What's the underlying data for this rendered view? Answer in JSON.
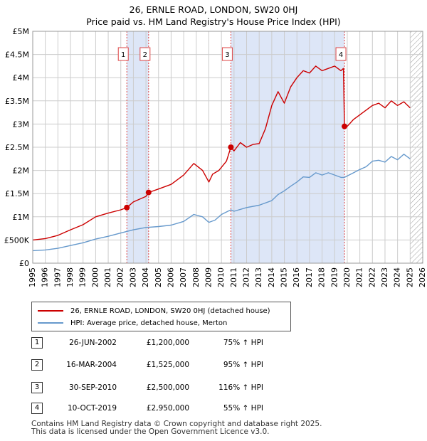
{
  "title_line1": "26, ERNLE ROAD, LONDON, SW20 0HJ",
  "title_line2": "Price paid vs. HM Land Registry's House Price Index (HPI)",
  "colors": {
    "property": "#cc0000",
    "hpi": "#6699cc",
    "shade": "#dde6f7",
    "grid": "#cccccc",
    "vline": "#dd4444"
  },
  "chart_data": {
    "type": "line",
    "title": "Price paid vs. HM Land Registry's House Price Index (HPI)",
    "xlim": [
      1995,
      2026
    ],
    "ylim": [
      0,
      5000000
    ],
    "x_ticks": [
      1995,
      1996,
      1997,
      1998,
      1999,
      2000,
      2001,
      2002,
      2003,
      2004,
      2005,
      2006,
      2007,
      2008,
      2009,
      2010,
      2011,
      2012,
      2013,
      2014,
      2015,
      2016,
      2017,
      2018,
      2019,
      2020,
      2021,
      2022,
      2023,
      2024,
      2025,
      2026
    ],
    "x_tick_labels": [
      "1995",
      "1996",
      "1997",
      "1998",
      "1999",
      "2000",
      "2001",
      "2002",
      "2003",
      "2004",
      "2005",
      "2006",
      "2007",
      "2008",
      "2009",
      "2010",
      "2011",
      "2012",
      "2013",
      "2014",
      "2015",
      "2016",
      "2017",
      "2018",
      "2019",
      "2020",
      "2021",
      "2022",
      "2023",
      "2024",
      "2025",
      "2026"
    ],
    "y_ticks": [
      0,
      500000,
      1000000,
      1500000,
      2000000,
      2500000,
      3000000,
      3500000,
      4000000,
      4500000,
      5000000
    ],
    "y_tick_labels": [
      "£0",
      "£500K",
      "£1M",
      "£1.5M",
      "£2M",
      "£2.5M",
      "£3M",
      "£3.5M",
      "£4M",
      "£4.5M",
      "£5M"
    ],
    "shaded_ranges": [
      [
        2002.48,
        2004.21
      ],
      [
        2010.75,
        2019.78
      ]
    ],
    "hatch_from": 2025.0,
    "series": [
      {
        "name": "26, ERNLE ROAD, LONDON, SW20 0HJ (detached house)",
        "x": [
          1995.0,
          1996.0,
          1997.0,
          1998.0,
          1999.0,
          2000.0,
          2001.0,
          2002.0,
          2002.48,
          2003.0,
          2004.0,
          2004.21,
          2005.0,
          2006.0,
          2007.0,
          2007.8,
          2008.5,
          2009.0,
          2009.3,
          2009.8,
          2010.4,
          2010.75,
          2011.0,
          2011.5,
          2012.0,
          2012.5,
          2013.0,
          2013.5,
          2014.0,
          2014.5,
          2015.0,
          2015.5,
          2016.0,
          2016.5,
          2017.0,
          2017.5,
          2018.0,
          2018.5,
          2019.0,
          2019.5,
          2019.7,
          2019.78,
          2020.0,
          2020.5,
          2021.0,
          2021.5,
          2022.0,
          2022.5,
          2023.0,
          2023.5,
          2024.0,
          2024.5,
          2025.0
        ],
        "y": [
          500000,
          530000,
          600000,
          720000,
          830000,
          1000000,
          1080000,
          1150000,
          1200000,
          1320000,
          1440000,
          1525000,
          1600000,
          1700000,
          1900000,
          2150000,
          2000000,
          1750000,
          1920000,
          2000000,
          2200000,
          2500000,
          2420000,
          2600000,
          2500000,
          2560000,
          2580000,
          2900000,
          3400000,
          3700000,
          3450000,
          3800000,
          4000000,
          4150000,
          4100000,
          4250000,
          4150000,
          4200000,
          4250000,
          4150000,
          4200000,
          2950000,
          2950000,
          3100000,
          3200000,
          3300000,
          3400000,
          3450000,
          3350000,
          3500000,
          3400000,
          3480000,
          3350000
        ]
      },
      {
        "name": "HPI: Average price, detached house, Merton",
        "x": [
          1995.0,
          1996.0,
          1997.0,
          1998.0,
          1999.0,
          2000.0,
          2001.0,
          2002.0,
          2003.0,
          2004.0,
          2005.0,
          2006.0,
          2007.0,
          2007.8,
          2008.5,
          2009.0,
          2009.5,
          2010.0,
          2010.75,
          2011.0,
          2012.0,
          2013.0,
          2014.0,
          2014.5,
          2015.0,
          2015.5,
          2016.0,
          2016.5,
          2017.0,
          2017.5,
          2018.0,
          2018.5,
          2019.0,
          2019.5,
          2019.78,
          2020.0,
          2020.5,
          2021.0,
          2021.5,
          2022.0,
          2022.5,
          2023.0,
          2023.5,
          2024.0,
          2024.5,
          2025.0
        ],
        "y": [
          270000,
          285000,
          320000,
          380000,
          440000,
          520000,
          580000,
          650000,
          720000,
          770000,
          790000,
          820000,
          900000,
          1050000,
          1000000,
          880000,
          930000,
          1050000,
          1150000,
          1120000,
          1200000,
          1250000,
          1350000,
          1480000,
          1560000,
          1660000,
          1750000,
          1860000,
          1850000,
          1950000,
          1900000,
          1950000,
          1900000,
          1850000,
          1850000,
          1880000,
          1950000,
          2020000,
          2080000,
          2200000,
          2220000,
          2180000,
          2300000,
          2230000,
          2350000,
          2250000
        ]
      }
    ],
    "sales": [
      {
        "label": "1",
        "x": 2002.48,
        "y": 1200000
      },
      {
        "label": "2",
        "x": 2004.21,
        "y": 1525000
      },
      {
        "label": "3",
        "x": 2010.75,
        "y": 2500000
      },
      {
        "label": "4",
        "x": 2019.78,
        "y": 2950000
      }
    ]
  },
  "legend": {
    "property": "26, ERNLE ROAD, LONDON, SW20 0HJ (detached house)",
    "hpi": "HPI: Average price, detached house, Merton"
  },
  "transactions": [
    {
      "num": "1",
      "date": "26-JUN-2002",
      "price": "£1,200,000",
      "hpi": "75% ↑ HPI"
    },
    {
      "num": "2",
      "date": "16-MAR-2004",
      "price": "£1,525,000",
      "hpi": "95% ↑ HPI"
    },
    {
      "num": "3",
      "date": "30-SEP-2010",
      "price": "£2,500,000",
      "hpi": "116% ↑ HPI"
    },
    {
      "num": "4",
      "date": "10-OCT-2019",
      "price": "£2,950,000",
      "hpi": "55% ↑ HPI"
    }
  ],
  "footer_line1": "Contains HM Land Registry data © Crown copyright and database right 2025.",
  "footer_line2": "This data is licensed under the Open Government Licence v3.0."
}
